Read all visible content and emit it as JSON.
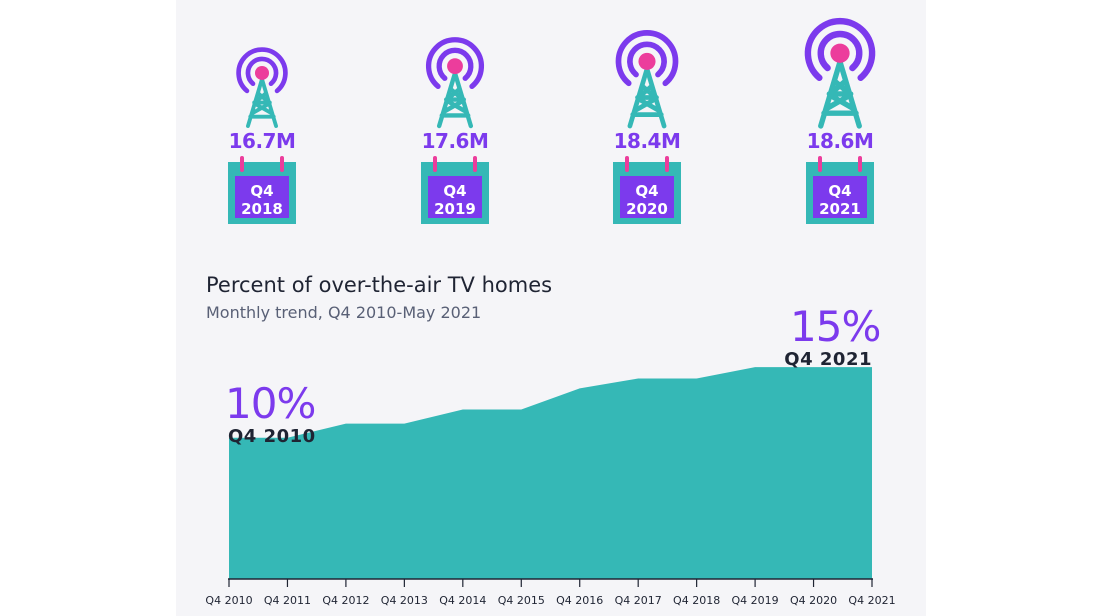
{
  "towers": [
    {
      "count": "16.7M",
      "quarter": "Q4",
      "year": "2018"
    },
    {
      "count": "17.6M",
      "quarter": "Q4",
      "year": "2019"
    },
    {
      "count": "18.4M",
      "quarter": "Q4",
      "year": "2020"
    },
    {
      "count": "18.6M",
      "quarter": "Q4",
      "year": "2021"
    }
  ],
  "colors": {
    "purple": "#7c3aed",
    "pink": "#ec3d9c",
    "teal": "#35b8b6",
    "text": "#1f2433"
  },
  "icons": [
    "broadcast-tower-icon",
    "calendar-icon"
  ],
  "chart_data": {
    "type": "area",
    "title": "Percent of over-the-air TV homes",
    "subtitle": "Monthly trend, Q4 2010-May 2021",
    "x": [
      "Q4 2010",
      "Q4 2011",
      "Q4 2012",
      "Q4 2013",
      "Q4 2014",
      "Q4 2015",
      "Q4 2016",
      "Q4 2017",
      "Q4 2018",
      "Q4 2019",
      "Q4 2020",
      "Q4 2021"
    ],
    "values": [
      10,
      10,
      11,
      11,
      12,
      12,
      13.5,
      14.2,
      14.2,
      15,
      15,
      15
    ],
    "ylim": [
      0,
      16.5
    ],
    "grid": false,
    "annotations": [
      {
        "value": "10%",
        "label": "Q4 2010"
      },
      {
        "value": "15%",
        "label": "Q4 2021"
      }
    ]
  }
}
